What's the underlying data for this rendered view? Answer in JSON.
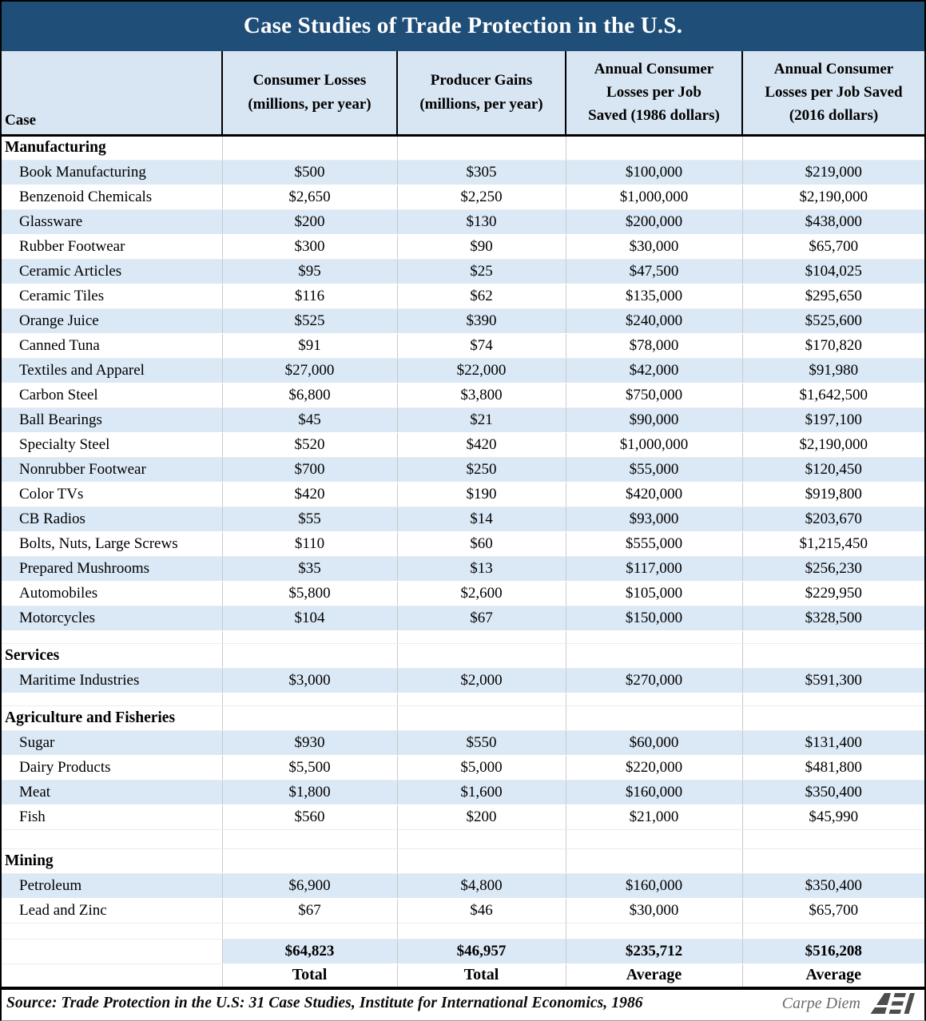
{
  "title": "Case Studies of Trade Protection in the U.S.",
  "chart_data": {
    "type": "table",
    "title": "Case Studies of Trade Protection in the U.S.",
    "columns": [
      {
        "id": "case",
        "lines": [
          "Case"
        ]
      },
      {
        "id": "consumer_losses",
        "lines": [
          "Consumer Losses",
          "(millions, per year)"
        ]
      },
      {
        "id": "producer_gains",
        "lines": [
          "Producer Gains",
          "(millions, per year)"
        ]
      },
      {
        "id": "losses_per_job_1986",
        "lines": [
          "Annual Consumer",
          "Losses per Job",
          "Saved (1986 dollars)"
        ]
      },
      {
        "id": "losses_per_job_2016",
        "lines": [
          "Annual Consumer",
          "Losses per Job Saved",
          "(2016 dollars)"
        ]
      }
    ],
    "sections": [
      {
        "name": "Manufacturing",
        "rows": [
          [
            "Book Manufacturing",
            "$500",
            "$305",
            "$100,000",
            "$219,000"
          ],
          [
            "Benzenoid Chemicals",
            "$2,650",
            "$2,250",
            "$1,000,000",
            "$2,190,000"
          ],
          [
            "Glassware",
            "$200",
            "$130",
            "$200,000",
            "$438,000"
          ],
          [
            "Rubber Footwear",
            "$300",
            "$90",
            "$30,000",
            "$65,700"
          ],
          [
            "Ceramic Articles",
            "$95",
            "$25",
            "$47,500",
            "$104,025"
          ],
          [
            "Ceramic Tiles",
            "$116",
            "$62",
            "$135,000",
            "$295,650"
          ],
          [
            "Orange Juice",
            "$525",
            "$390",
            "$240,000",
            "$525,600"
          ],
          [
            "Canned Tuna",
            "$91",
            "$74",
            "$78,000",
            "$170,820"
          ],
          [
            "Textiles and Apparel",
            "$27,000",
            "$22,000",
            "$42,000",
            "$91,980"
          ],
          [
            "Carbon Steel",
            "$6,800",
            "$3,800",
            "$750,000",
            "$1,642,500"
          ],
          [
            "Ball Bearings",
            "$45",
            "$21",
            "$90,000",
            "$197,100"
          ],
          [
            "Specialty Steel",
            "$520",
            "$420",
            "$1,000,000",
            "$2,190,000"
          ],
          [
            "Nonrubber Footwear",
            "$700",
            "$250",
            "$55,000",
            "$120,450"
          ],
          [
            "Color TVs",
            "$420",
            "$190",
            "$420,000",
            "$919,800"
          ],
          [
            "CB Radios",
            "$55",
            "$14",
            "$93,000",
            "$203,670"
          ],
          [
            "Bolts, Nuts, Large Screws",
            "$110",
            "$60",
            "$555,000",
            "$1,215,450"
          ],
          [
            "Prepared Mushrooms",
            "$35",
            "$13",
            "$117,000",
            "$256,230"
          ],
          [
            "Automobiles",
            "$5,800",
            "$2,600",
            "$105,000",
            "$229,950"
          ],
          [
            "Motorcycles",
            "$104",
            "$67",
            "$150,000",
            "$328,500"
          ]
        ]
      },
      {
        "name": "Services",
        "rows": [
          [
            "Maritime Industries",
            "$3,000",
            "$2,000",
            "$270,000",
            "$591,300"
          ]
        ]
      },
      {
        "name": "Agriculture and Fisheries",
        "rows": [
          [
            "Sugar",
            "$930",
            "$550",
            "$60,000",
            "$131,400"
          ],
          [
            "Dairy Products",
            "$5,500",
            "$5,000",
            "$220,000",
            "$481,800"
          ],
          [
            "Meat",
            "$1,800",
            "$1,600",
            "$160,000",
            "$350,400"
          ],
          [
            "Fish",
            "$560",
            "$200",
            "$21,000",
            "$45,990"
          ]
        ]
      },
      {
        "name": "Mining",
        "rows": [
          [
            "Petroleum",
            "$6,900",
            "$4,800",
            "$160,000",
            "$350,400"
          ],
          [
            "Lead and Zinc",
            "$67",
            "$46",
            "$30,000",
            "$65,700"
          ]
        ]
      }
    ],
    "summary": {
      "values": [
        "$64,823",
        "$46,957",
        "$235,712",
        "$516,208"
      ],
      "labels": [
        "Total",
        "Total",
        "Average",
        "Average"
      ]
    },
    "source": "Source: Trade Protection in the U.S: 31 Case Studies, Institute for International Economics, 1986",
    "branding": {
      "text": "Carpe Diem",
      "logo": "AEI"
    }
  },
  "colors": {
    "title_bar": "#1f4e79",
    "header_bg": "#d8e5f2",
    "stripe": "#dbe8f5",
    "grid": "#c9c9c9",
    "title_text": "#ffffff",
    "brand_gray": "#6a6a6c"
  }
}
